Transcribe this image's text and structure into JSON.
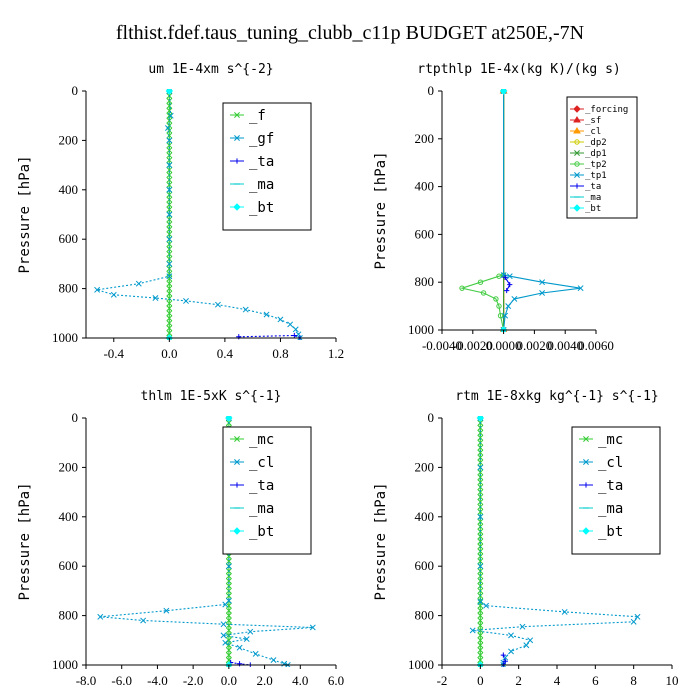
{
  "title": "flthist.fdef.taus_tuning_clubb_c11p  BUDGET at250E,-7N",
  "chart_data": [
    {
      "type": "line",
      "title": "um  1E-4xm s^{-2}",
      "ylabel": "Pressure [hPa]",
      "xlim": [
        -0.6,
        1.2
      ],
      "ylim": [
        1000,
        0
      ],
      "xticks": [
        "-0.4",
        "0.0",
        "0.4",
        "0.8",
        "1.2"
      ],
      "xtick_values": [
        -0.4,
        0.0,
        0.4,
        0.8,
        1.2
      ],
      "yticks": [
        "0",
        "200",
        "400",
        "600",
        "800",
        "1000"
      ],
      "ytick_values": [
        0,
        200,
        400,
        600,
        800,
        1000
      ],
      "legend_position": "top-right",
      "series": [
        {
          "name": "_f",
          "color": "#33cc33",
          "marker": "x",
          "style": "solid",
          "points": [
            [
              0,
              0
            ],
            [
              0,
              100
            ],
            [
              0,
              200
            ],
            [
              0,
              300
            ],
            [
              0,
              400
            ],
            [
              0,
              500
            ],
            [
              0,
              600
            ],
            [
              0,
              700
            ],
            [
              0,
              760
            ],
            [
              0,
              800
            ],
            [
              0,
              850
            ],
            [
              0,
              900
            ],
            [
              0,
              950
            ],
            [
              0,
              1000
            ]
          ]
        },
        {
          "name": "_gf",
          "color": "#0099cc",
          "marker": "x",
          "style": "dotted",
          "points": [
            [
              0,
              0
            ],
            [
              0.01,
              100
            ],
            [
              -0.01,
              150
            ],
            [
              0,
              200
            ],
            [
              0,
              300
            ],
            [
              0,
              400
            ],
            [
              0,
              500
            ],
            [
              0,
              600
            ],
            [
              0,
              700
            ],
            [
              0,
              750
            ],
            [
              -0.22,
              780
            ],
            [
              -0.52,
              805
            ],
            [
              -0.4,
              825
            ],
            [
              -0.1,
              838
            ],
            [
              0.12,
              850
            ],
            [
              0.35,
              865
            ],
            [
              0.55,
              885
            ],
            [
              0.7,
              905
            ],
            [
              0.8,
              925
            ],
            [
              0.87,
              945
            ],
            [
              0.91,
              965
            ],
            [
              0.93,
              985
            ],
            [
              0.94,
              1000
            ]
          ]
        },
        {
          "name": "_ta",
          "color": "#0000ee",
          "marker": "+",
          "style": "dotted",
          "points": [
            [
              0.5,
              995
            ],
            [
              0.9,
              990
            ],
            [
              0.94,
              1000
            ]
          ]
        },
        {
          "name": "_ma",
          "color": "#00cccc",
          "marker": "-",
          "style": "none",
          "points": [
            [
              0,
              0
            ],
            [
              0,
              1000
            ]
          ]
        },
        {
          "name": "_bt",
          "color": "#00ffff",
          "marker": "diamond",
          "style": "none",
          "points": [
            [
              0,
              0
            ],
            [
              0,
              1000
            ]
          ]
        }
      ]
    },
    {
      "type": "line",
      "title": "rtpthlp  1E-4x(kg K)/(kg s)",
      "ylabel": "Pressure [hPa]",
      "xlim": [
        -0.004,
        0.006
      ],
      "ylim": [
        1000,
        0
      ],
      "xticks": [
        "-0.0040",
        "-0.0020",
        "0.0000",
        "0.0020",
        "0.0040",
        "0.0060"
      ],
      "xtick_values": [
        -0.004,
        -0.002,
        0.0,
        0.002,
        0.004,
        0.006
      ],
      "yticks": [
        "0",
        "200",
        "400",
        "600",
        "800",
        "1000"
      ],
      "ytick_values": [
        0,
        200,
        400,
        600,
        800,
        1000
      ],
      "legend_position": "top-right",
      "series": [
        {
          "name": "_forcing",
          "color": "#dd2222",
          "marker": "diamond",
          "style": "solid",
          "points": [
            [
              0,
              0
            ],
            [
              0,
              1000
            ]
          ]
        },
        {
          "name": "_sf",
          "color": "#dd2222",
          "marker": "triangle",
          "style": "solid",
          "points": [
            [
              0,
              0
            ],
            [
              0,
              1000
            ]
          ]
        },
        {
          "name": "_cl",
          "color": "#ff9900",
          "marker": "triangle",
          "style": "solid",
          "points": [
            [
              0,
              0
            ],
            [
              0,
              1000
            ]
          ]
        },
        {
          "name": "_dp2",
          "color": "#cccc00",
          "marker": "o",
          "style": "solid",
          "points": [
            [
              0,
              0
            ],
            [
              0,
              1000
            ]
          ]
        },
        {
          "name": "_dp1",
          "color": "#339933",
          "marker": "x",
          "style": "solid",
          "points": [
            [
              0,
              0
            ],
            [
              0,
              1000
            ]
          ]
        },
        {
          "name": "_tp2",
          "color": "#44cc44",
          "marker": "o",
          "style": "solid",
          "points": [
            [
              0,
              0
            ],
            [
              0,
              770
            ],
            [
              -0.0003,
              775
            ],
            [
              -0.0015,
              800
            ],
            [
              -0.0027,
              825
            ],
            [
              -0.0013,
              845
            ],
            [
              -0.0005,
              870
            ],
            [
              -0.0003,
              900
            ],
            [
              -0.0002,
              940
            ],
            [
              0,
              1000
            ]
          ]
        },
        {
          "name": "_tp1",
          "color": "#0099cc",
          "marker": "x",
          "style": "solid",
          "points": [
            [
              0,
              0
            ],
            [
              0,
              770
            ],
            [
              0.0004,
              775
            ],
            [
              0.0025,
              800
            ],
            [
              0.005,
              825
            ],
            [
              0.0025,
              845
            ],
            [
              0.0007,
              870
            ],
            [
              0.0003,
              900
            ],
            [
              0.0001,
              940
            ],
            [
              0,
              1000
            ]
          ]
        },
        {
          "name": "_ta",
          "color": "#0000ee",
          "marker": "+",
          "style": "solid",
          "points": [
            [
              0.0001,
              780
            ],
            [
              0.0004,
              810
            ],
            [
              0.0002,
              835
            ]
          ]
        },
        {
          "name": "_ma",
          "color": "#00cccc",
          "marker": "-",
          "style": "none",
          "points": [
            [
              0,
              0
            ],
            [
              0,
              1000
            ]
          ]
        },
        {
          "name": "_bt",
          "color": "#00ffff",
          "marker": "diamond",
          "style": "none",
          "points": [
            [
              0,
              0
            ],
            [
              0,
              1000
            ]
          ]
        }
      ]
    },
    {
      "type": "line",
      "title": "thlm  1E-5xK s^{-1}",
      "ylabel": "Pressure [hPa]",
      "xlim": [
        -8.0,
        6.0
      ],
      "ylim": [
        1000,
        0
      ],
      "xticks": [
        "-8.0",
        "-6.0",
        "-4.0",
        "-2.0",
        "0.0",
        "2.0",
        "4.0",
        "6.0"
      ],
      "xtick_values": [
        -8,
        -6,
        -4,
        -2,
        0,
        2,
        4,
        6
      ],
      "yticks": [
        "0",
        "200",
        "400",
        "600",
        "800",
        "1000"
      ],
      "ytick_values": [
        0,
        200,
        400,
        600,
        800,
        1000
      ],
      "legend_position": "top-right",
      "series": [
        {
          "name": "_mc",
          "color": "#33cc33",
          "marker": "x",
          "style": "solid",
          "points": [
            [
              0,
              0
            ],
            [
              0,
              100
            ],
            [
              0,
              200
            ],
            [
              0,
              300
            ],
            [
              0,
              400
            ],
            [
              0,
              500
            ],
            [
              0,
              600
            ],
            [
              0,
              700
            ],
            [
              0,
              760
            ],
            [
              0,
              800
            ],
            [
              0,
              850
            ],
            [
              0,
              900
            ],
            [
              0,
              950
            ],
            [
              0,
              1000
            ]
          ]
        },
        {
          "name": "_cl",
          "color": "#0099cc",
          "marker": "x",
          "style": "dotted",
          "points": [
            [
              0,
              0
            ],
            [
              0,
              200
            ],
            [
              0,
              400
            ],
            [
              0,
              600
            ],
            [
              0,
              740
            ],
            [
              -0.2,
              755
            ],
            [
              -3.5,
              780
            ],
            [
              -7.2,
              805
            ],
            [
              -4.8,
              820
            ],
            [
              -0.3,
              835
            ],
            [
              4.7,
              848
            ],
            [
              1.2,
              865
            ],
            [
              -0.3,
              880
            ],
            [
              1.0,
              895
            ],
            [
              -0.2,
              910
            ],
            [
              0.6,
              930
            ],
            [
              1.5,
              955
            ],
            [
              2.5,
              980
            ],
            [
              3.1,
              995
            ],
            [
              3.3,
              1000
            ]
          ]
        },
        {
          "name": "_ta",
          "color": "#0000ee",
          "marker": "+",
          "style": "dotted",
          "points": [
            [
              0.1,
              990
            ],
            [
              0.6,
              995
            ],
            [
              1.2,
              1000
            ]
          ]
        },
        {
          "name": "_ma",
          "color": "#00cccc",
          "marker": "-",
          "style": "none",
          "points": [
            [
              0,
              0
            ],
            [
              0,
              1000
            ]
          ]
        },
        {
          "name": "_bt",
          "color": "#00ffff",
          "marker": "diamond",
          "style": "none",
          "points": [
            [
              0,
              0
            ],
            [
              0,
              1000
            ]
          ]
        }
      ]
    },
    {
      "type": "line",
      "title": "rtm  1E-8xkg kg^{-1} s^{-1}",
      "ylabel": "Pressure [hPa]",
      "xlim": [
        -2,
        10
      ],
      "ylim": [
        1000,
        0
      ],
      "xticks": [
        "-2",
        "0",
        "2",
        "4",
        "6",
        "8",
        "10"
      ],
      "xtick_values": [
        -2,
        0,
        2,
        4,
        6,
        8,
        10
      ],
      "yticks": [
        "0",
        "200",
        "400",
        "600",
        "800",
        "1000"
      ],
      "ytick_values": [
        0,
        200,
        400,
        600,
        800,
        1000
      ],
      "legend_position": "top-right",
      "series": [
        {
          "name": "_mc",
          "color": "#33cc33",
          "marker": "x",
          "style": "solid",
          "points": [
            [
              0,
              0
            ],
            [
              0,
              100
            ],
            [
              0,
              200
            ],
            [
              0,
              300
            ],
            [
              0,
              400
            ],
            [
              0,
              500
            ],
            [
              0,
              600
            ],
            [
              0,
              700
            ],
            [
              0,
              760
            ],
            [
              0,
              800
            ],
            [
              0,
              850
            ],
            [
              0,
              900
            ],
            [
              0,
              950
            ],
            [
              0,
              1000
            ]
          ]
        },
        {
          "name": "_cl",
          "color": "#0099cc",
          "marker": "x",
          "style": "dotted",
          "points": [
            [
              0,
              0
            ],
            [
              0,
              200
            ],
            [
              0,
              400
            ],
            [
              0,
              600
            ],
            [
              0,
              745
            ],
            [
              0.3,
              760
            ],
            [
              4.4,
              785
            ],
            [
              8.2,
              805
            ],
            [
              8.0,
              825
            ],
            [
              2.2,
              845
            ],
            [
              -0.4,
              860
            ],
            [
              1.6,
              880
            ],
            [
              2.6,
              900
            ],
            [
              2.4,
              920
            ],
            [
              1.6,
              945
            ],
            [
              1.3,
              970
            ],
            [
              1.2,
              990
            ],
            [
              1.2,
              1000
            ]
          ]
        },
        {
          "name": "_ta",
          "color": "#0000ee",
          "marker": "+",
          "style": "dotted",
          "points": [
            [
              1.2,
              960
            ],
            [
              1.3,
              985
            ],
            [
              1.2,
              1000
            ]
          ]
        },
        {
          "name": "_ma",
          "color": "#00cccc",
          "marker": "-",
          "style": "none",
          "points": [
            [
              0,
              0
            ],
            [
              0,
              1000
            ]
          ]
        },
        {
          "name": "_bt",
          "color": "#00ffff",
          "marker": "diamond",
          "style": "none",
          "points": [
            [
              0,
              0
            ],
            [
              0,
              1000
            ]
          ]
        }
      ]
    }
  ]
}
